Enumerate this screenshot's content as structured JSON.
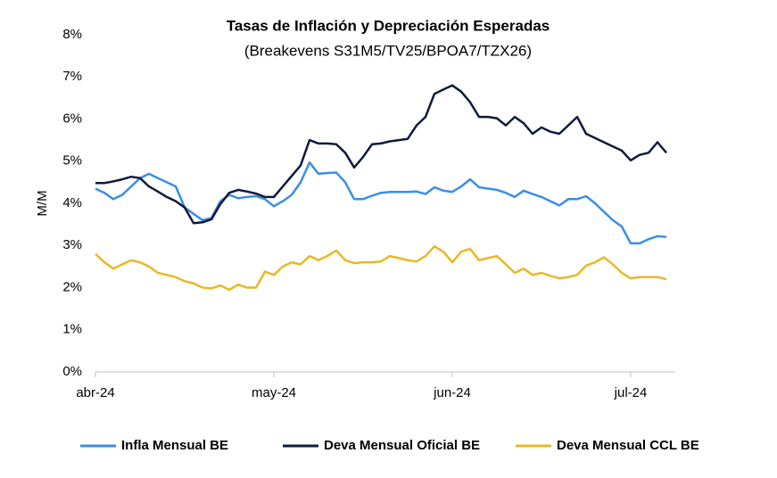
{
  "chart_data": {
    "type": "line",
    "title": "Tasas de Inflación y Depreciación Esperadas",
    "subtitle": "(Breakevens S31M5/TV25/BPOA7/TZX26)",
    "ylabel": "M/M",
    "categories": [
      "abr-24",
      null,
      null,
      null,
      null,
      null,
      null,
      null,
      null,
      null,
      null,
      null,
      null,
      null,
      null,
      null,
      null,
      null,
      null,
      null,
      "may-24",
      null,
      null,
      null,
      null,
      null,
      null,
      null,
      null,
      null,
      null,
      null,
      null,
      null,
      null,
      null,
      null,
      null,
      null,
      null,
      "jun-24",
      null,
      null,
      null,
      null,
      null,
      null,
      null,
      null,
      null,
      null,
      null,
      null,
      null,
      null,
      null,
      null,
      null,
      null,
      null,
      "jul-24",
      null,
      null,
      null,
      null
    ],
    "ylim": [
      0,
      8
    ],
    "yticks": [
      {
        "value": 0,
        "label": "0%"
      },
      {
        "value": 1,
        "label": "1%"
      },
      {
        "value": 2,
        "label": "2%"
      },
      {
        "value": 3,
        "label": "3%"
      },
      {
        "value": 4,
        "label": "4%"
      },
      {
        "value": 5,
        "label": "5%"
      },
      {
        "value": 6,
        "label": "6%"
      },
      {
        "value": 7,
        "label": "7%"
      },
      {
        "value": 8,
        "label": "8%"
      }
    ],
    "grid": false,
    "legend": "bottom",
    "series": [
      {
        "name": "Infla Mensual BE",
        "color": "#3a8ee6",
        "values": [
          4.35,
          4.25,
          4.1,
          4.2,
          4.4,
          4.6,
          4.7,
          4.6,
          4.5,
          4.4,
          3.9,
          3.75,
          3.6,
          3.65,
          4.05,
          4.2,
          4.12,
          4.15,
          4.17,
          4.1,
          3.93,
          4.05,
          4.2,
          4.5,
          4.97,
          4.7,
          4.72,
          4.73,
          4.5,
          4.1,
          4.1,
          4.18,
          4.25,
          4.27,
          4.27,
          4.27,
          4.28,
          4.22,
          4.38,
          4.3,
          4.27,
          4.4,
          4.57,
          4.38,
          4.35,
          4.32,
          4.25,
          4.15,
          4.3,
          4.22,
          4.15,
          4.05,
          3.95,
          4.1,
          4.1,
          4.17,
          4.0,
          3.8,
          3.6,
          3.45,
          3.05,
          3.05,
          3.15,
          3.22,
          3.2
        ]
      },
      {
        "name": "Deva Mensual Oficial BE",
        "color": "#0f1a3c",
        "values": [
          4.48,
          4.48,
          4.52,
          4.57,
          4.63,
          4.6,
          4.4,
          4.28,
          4.15,
          4.05,
          3.9,
          3.53,
          3.55,
          3.62,
          3.98,
          4.25,
          4.32,
          4.28,
          4.23,
          4.15,
          4.15,
          4.4,
          4.65,
          4.9,
          5.5,
          5.42,
          5.42,
          5.4,
          5.2,
          4.85,
          5.1,
          5.4,
          5.42,
          5.47,
          5.5,
          5.53,
          5.85,
          6.05,
          6.6,
          6.7,
          6.8,
          6.65,
          6.4,
          6.05,
          6.05,
          6.02,
          5.85,
          6.05,
          5.9,
          5.65,
          5.8,
          5.7,
          5.65,
          5.85,
          6.05,
          5.65,
          5.55,
          5.45,
          5.35,
          5.25,
          5.02,
          5.15,
          5.2,
          5.45,
          5.2
        ]
      },
      {
        "name": "Deva Mensual CCL BE",
        "color": "#e8b923",
        "values": [
          2.8,
          2.6,
          2.45,
          2.55,
          2.65,
          2.6,
          2.5,
          2.35,
          2.3,
          2.25,
          2.15,
          2.1,
          2.0,
          1.98,
          2.05,
          1.95,
          2.07,
          2.0,
          2.0,
          2.38,
          2.3,
          2.5,
          2.6,
          2.55,
          2.75,
          2.65,
          2.75,
          2.88,
          2.65,
          2.58,
          2.6,
          2.6,
          2.62,
          2.75,
          2.7,
          2.65,
          2.62,
          2.75,
          2.98,
          2.85,
          2.6,
          2.85,
          2.92,
          2.65,
          2.7,
          2.75,
          2.55,
          2.35,
          2.45,
          2.3,
          2.35,
          2.28,
          2.22,
          2.25,
          2.3,
          2.52,
          2.6,
          2.72,
          2.55,
          2.35,
          2.22,
          2.25,
          2.25,
          2.25,
          2.2
        ]
      }
    ]
  }
}
